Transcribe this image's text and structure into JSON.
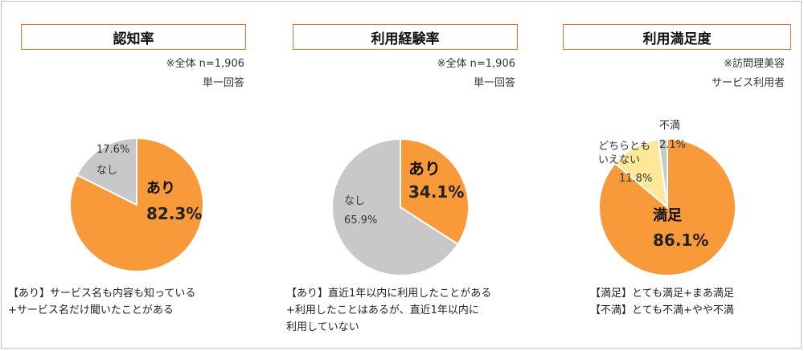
{
  "colors": {
    "orange": "#f89a3a",
    "gray": "#c8c8c8",
    "yellow": "#fde89a",
    "title_border": "#e8712a"
  },
  "chart_data": [
    {
      "type": "pie",
      "title": "認知率",
      "note1": "※全体 n=1,906",
      "note2": "単一回答",
      "slices": [
        {
          "name": "あり",
          "value": 82.3,
          "label": "82.3%",
          "color": "#f89a3a"
        },
        {
          "name": "なし",
          "value": 17.6,
          "label": "17.6%",
          "color": "#c8c8c8"
        }
      ],
      "caption": [
        "【あり】サービス名も内容も知っている",
        "+サービス名だけ聞いたことがある"
      ]
    },
    {
      "type": "pie",
      "title": "利用経験率",
      "note1": "※全体 n=1,906",
      "note2": "単一回答",
      "slices": [
        {
          "name": "あり",
          "value": 34.1,
          "label": "34.1%",
          "color": "#f89a3a"
        },
        {
          "name": "なし",
          "value": 65.9,
          "label": "65.9%",
          "color": "#c8c8c8"
        }
      ],
      "caption": [
        "【あり】直近1年以内に利用したことがある",
        "+利用したことはあるが、直近1年以内に",
        "利用していない"
      ]
    },
    {
      "type": "pie",
      "title": "利用満足度",
      "note1": "※訪問理美容",
      "note2": "サービス利用者",
      "slices": [
        {
          "name": "満足",
          "value": 86.1,
          "label": "86.1%",
          "color": "#f89a3a"
        },
        {
          "name": "どちらとも|いえない",
          "value": 11.8,
          "label": "11.8%",
          "color": "#fde89a"
        },
        {
          "name": "不満",
          "value": 2.1,
          "label": "2.1%",
          "color": "#c8c8c8"
        }
      ],
      "caption": [
        "【満足】とても満足+まあ満足",
        "【不満】とても不満+やや不満"
      ]
    }
  ]
}
